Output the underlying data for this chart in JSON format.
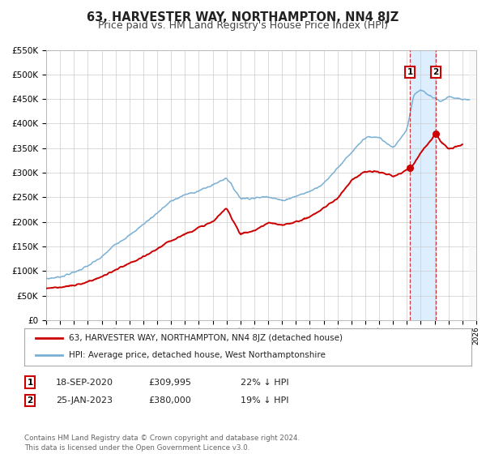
{
  "title": "63, HARVESTER WAY, NORTHAMPTON, NN4 8JZ",
  "subtitle": "Price paid vs. HM Land Registry's House Price Index (HPI)",
  "xlim": [
    1995.0,
    2026.0
  ],
  "ylim": [
    0,
    550000
  ],
  "yticks": [
    0,
    50000,
    100000,
    150000,
    200000,
    250000,
    300000,
    350000,
    400000,
    450000,
    500000,
    550000
  ],
  "ytick_labels": [
    "£0",
    "£50K",
    "£100K",
    "£150K",
    "£200K",
    "£250K",
    "£300K",
    "£350K",
    "£400K",
    "£450K",
    "£500K",
    "£550K"
  ],
  "xticks": [
    1995,
    1996,
    1997,
    1998,
    1999,
    2000,
    2001,
    2002,
    2003,
    2004,
    2005,
    2006,
    2007,
    2008,
    2009,
    2010,
    2011,
    2012,
    2013,
    2014,
    2015,
    2016,
    2017,
    2018,
    2019,
    2020,
    2021,
    2022,
    2023,
    2024,
    2025,
    2026
  ],
  "background_color": "#ffffff",
  "plot_bg_color": "#ffffff",
  "grid_color": "#cccccc",
  "highlight_bg_color": "#ddeeff",
  "vline1_x": 2021.22,
  "vline2_x": 2023.08,
  "sale1_price": 309995,
  "sale2_price": 380000,
  "legend_label_red": "63, HARVESTER WAY, NORTHAMPTON, NN4 8JZ (detached house)",
  "legend_label_blue": "HPI: Average price, detached house, West Northamptonshire",
  "footer": "Contains HM Land Registry data © Crown copyright and database right 2024.\nThis data is licensed under the Open Government Licence v3.0.",
  "red_color": "#cc0000",
  "blue_color": "#7ab0d4",
  "title_fontsize": 10.5,
  "subtitle_fontsize": 9,
  "hpi_keypoints_x": [
    1995,
    1996,
    1997,
    1998,
    1999,
    2000,
    2001,
    2002,
    2003,
    2004,
    2005,
    2006,
    2007,
    2008,
    2009,
    2010,
    2011,
    2012,
    2013,
    2014,
    2015,
    2016,
    2017,
    2018,
    2019,
    2020,
    2021,
    2021.5,
    2022.0,
    2022.5,
    2023.0,
    2023.5,
    2024.0,
    2024.5,
    2025.0,
    2025.5
  ],
  "hpi_keypoints_y": [
    84000,
    88000,
    97000,
    110000,
    128000,
    155000,
    172000,
    195000,
    218000,
    242000,
    255000,
    263000,
    275000,
    290000,
    248000,
    248000,
    252000,
    243000,
    252000,
    262000,
    278000,
    310000,
    340000,
    372000,
    372000,
    350000,
    388000,
    460000,
    468000,
    460000,
    452000,
    445000,
    455000,
    452000,
    450000,
    448000
  ],
  "pp_keypoints_x": [
    1995,
    1996,
    1997,
    1998,
    1999,
    2000,
    2001,
    2002,
    2003,
    2004,
    2005,
    2006,
    2007,
    2008,
    2009,
    2010,
    2011,
    2012,
    2013,
    2014,
    2015,
    2016,
    2017,
    2018,
    2019,
    2020.0,
    2020.5,
    2021.22,
    2021.5,
    2022.0,
    2022.5,
    2023.08,
    2023.5,
    2024.0,
    2024.5,
    2025.0
  ],
  "pp_keypoints_y": [
    65000,
    67000,
    70000,
    78000,
    88000,
    102000,
    115000,
    128000,
    145000,
    162000,
    175000,
    188000,
    200000,
    228000,
    175000,
    182000,
    198000,
    193000,
    200000,
    210000,
    228000,
    248000,
    285000,
    302000,
    302000,
    292000,
    298000,
    309995,
    318000,
    342000,
    358000,
    380000,
    362000,
    348000,
    352000,
    358000
  ]
}
